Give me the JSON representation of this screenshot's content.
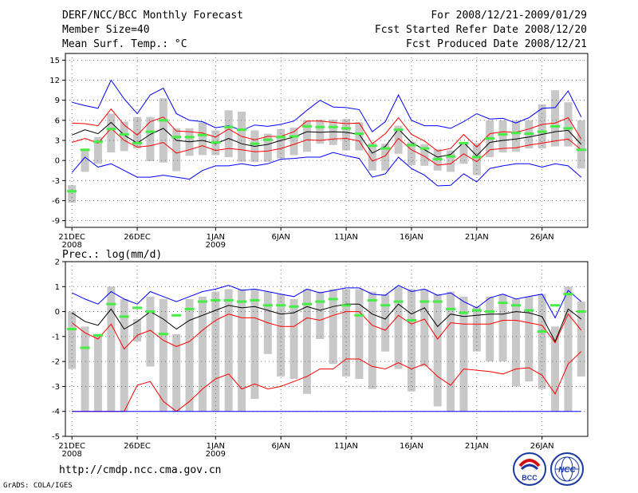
{
  "header": {
    "title": "DERF/NCC/BCC Monthly Forecast",
    "member_size": "Member Size=40",
    "variable1": "Mean Surf. Temp.: °C",
    "period": "For 2008/12/21-2009/01/29",
    "fcst_started": "Fcst Started Refer Date 2008/12/20",
    "fcst_produced": "Fcst Produced Date 2008/12/21"
  },
  "footer": {
    "url": "http://cmdp.ncc.cma.gov.cn",
    "grads": "GrADS: COLA/IGES",
    "logo1_text": "BCC",
    "logo2_text": "NCC"
  },
  "colors": {
    "envelope": "#0000ff",
    "percentile": "#ff0000",
    "median": "#000000",
    "observed": "#44ee44",
    "box": "#c8c8c8",
    "grid": "#555555"
  },
  "chart_data": [
    {
      "type": "line",
      "title": "Mean Surf. Temp.: °C",
      "ylabel": "°C",
      "ylim": [
        -10,
        16
      ],
      "yticks": [
        15,
        12,
        9,
        6,
        3,
        0,
        -3,
        -6,
        -9
      ],
      "xticks": [
        {
          "day": 1,
          "label": "21DEC",
          "sub": "2008"
        },
        {
          "day": 6,
          "label": "26DEC",
          "sub": ""
        },
        {
          "day": 12,
          "label": "1JAN",
          "sub": "2009"
        },
        {
          "day": 17,
          "label": "6JAN",
          "sub": ""
        },
        {
          "day": 22,
          "label": "11JAN",
          "sub": ""
        },
        {
          "day": 27,
          "label": "16JAN",
          "sub": ""
        },
        {
          "day": 32,
          "label": "21JAN",
          "sub": ""
        },
        {
          "day": 37,
          "label": "26JAN",
          "sub": ""
        }
      ],
      "days": 40,
      "series": [
        {
          "name": "max",
          "values": [
            8.7,
            8.2,
            7.8,
            12,
            9.2,
            7,
            9.8,
            10.8,
            7,
            6,
            5.8,
            4.9,
            5.2,
            4.5,
            5.3,
            5.1,
            5.4,
            5.9,
            7.5,
            9,
            8,
            7.9,
            7.6,
            4.3,
            5.8,
            9.8,
            6,
            5.2,
            5.2,
            4.8,
            5.8,
            7,
            6.2,
            6.3,
            5.6,
            6.4,
            7.8,
            7.9,
            10.4,
            6.5
          ]
        },
        {
          "name": "p75",
          "values": [
            5.6,
            5.5,
            5.2,
            7.7,
            5.3,
            3.8,
            5.8,
            6.5,
            4.4,
            4.3,
            4.1,
            3.5,
            4.7,
            3.6,
            3.1,
            3.6,
            3.6,
            4.3,
            5.9,
            5.9,
            5.7,
            5.5,
            5.6,
            2.5,
            4,
            6.4,
            3.9,
            2.9,
            1.4,
            1.8,
            3.9,
            2,
            4,
            4.3,
            4.2,
            4.7,
            5.4,
            5.6,
            6.4,
            3.2
          ]
        },
        {
          "name": "median",
          "values": [
            3.8,
            4.6,
            4,
            5.7,
            3.8,
            2.6,
            3.9,
            4.8,
            3,
            2.8,
            3,
            2.5,
            3.3,
            2.5,
            2.1,
            2.4,
            3,
            3.5,
            4.3,
            4.2,
            4.3,
            4.2,
            3.9,
            1.1,
            2.1,
            4.7,
            2.7,
            1.6,
            0.5,
            0.9,
            2.7,
            0.7,
            2.7,
            3,
            3.2,
            3.5,
            3.9,
            4.3,
            4.5,
            2.4
          ]
        },
        {
          "name": "p25",
          "values": [
            2.7,
            3.3,
            2.6,
            4.8,
            3,
            2,
            2.2,
            2.7,
            1.1,
            1.6,
            2.2,
            1.5,
            1.8,
            1.6,
            1.3,
            1.4,
            1.8,
            2.4,
            3.1,
            3,
            3.2,
            3.3,
            2.9,
            -0.1,
            0.7,
            3.3,
            1.6,
            0.6,
            -0.7,
            -0.5,
            1,
            -0.2,
            1.6,
            1.8,
            1.9,
            2.3,
            2.6,
            2.9,
            3.2,
            1.6
          ]
        },
        {
          "name": "min",
          "values": [
            -1.8,
            0.5,
            -1,
            -0.5,
            -1.5,
            -2.5,
            -2.5,
            -2.2,
            -2.5,
            -2.8,
            -1.5,
            -0.8,
            -0.8,
            -0.5,
            -0.8,
            -0.5,
            0.2,
            0.3,
            0.5,
            0.5,
            1.2,
            0.7,
            0.3,
            -2.5,
            -2,
            0.5,
            -1.2,
            -2.2,
            -3.8,
            -3.7,
            -2,
            -3.2,
            -1.2,
            -0.8,
            -0.5,
            -0.5,
            -1,
            -0.5,
            -0.8,
            -2.5
          ]
        },
        {
          "name": "box_high",
          "values": [
            -3.7,
            1.6,
            3.5,
            7,
            5.8,
            6.5,
            6.5,
            9.3,
            4.8,
            4.8,
            5.7,
            4.5,
            7.5,
            7.3,
            4.5,
            4,
            4.7,
            4.9,
            6,
            6.1,
            6.1,
            6.2,
            5.7,
            2.6,
            2.5,
            5.2,
            2.8,
            2.4,
            1.7,
            1.5,
            2.6,
            2.6,
            6,
            6,
            6,
            6,
            8.4,
            10.5,
            8.7,
            6
          ]
        },
        {
          "name": "box_low",
          "values": [
            -6.3,
            -1.7,
            -0.5,
            1.2,
            1.4,
            1.8,
            -0.1,
            -0.3,
            -1.6,
            0.7,
            0.8,
            0.8,
            0.5,
            -0.2,
            -0.2,
            -0.2,
            0.3,
            0.8,
            1.3,
            2.5,
            2.3,
            1.5,
            1.5,
            -1.5,
            -1.5,
            1,
            -0.7,
            -0.8,
            -1.5,
            -1.7,
            -0.5,
            -2.2,
            0.5,
            1.2,
            1.3,
            1.8,
            1.8,
            2.1,
            2.1,
            -1.2
          ]
        },
        {
          "name": "observed",
          "values": [
            -4.6,
            1.6,
            2.8,
            4.7,
            3.9,
            2.6,
            4.3,
            6,
            3.5,
            3.5,
            3.8,
            2.7,
            5,
            4.6,
            2.5,
            3.1,
            3.5,
            3.6,
            5.1,
            5,
            5,
            4.8,
            4,
            2.2,
            1.8,
            4.6,
            2.3,
            1.8,
            0.2,
            0.6,
            2.6,
            0.5,
            3.3,
            3.9,
            4.1,
            4,
            4.3,
            5.1,
            4.8,
            1.6
          ]
        }
      ]
    },
    {
      "type": "line",
      "title": "Prec.: log(mm/d)",
      "ylabel": "log(mm/d)",
      "ylim": [
        -5,
        2
      ],
      "yticks": [
        2,
        1,
        0,
        -1,
        -2,
        -3,
        -4,
        -5
      ],
      "xticks": [
        {
          "day": 1,
          "label": "21DEC",
          "sub": "2008"
        },
        {
          "day": 6,
          "label": "26DEC",
          "sub": ""
        },
        {
          "day": 12,
          "label": "1JAN",
          "sub": "2009"
        },
        {
          "day": 17,
          "label": "6JAN",
          "sub": ""
        },
        {
          "day": 22,
          "label": "11JAN",
          "sub": ""
        },
        {
          "day": 27,
          "label": "16JAN",
          "sub": ""
        },
        {
          "day": 32,
          "label": "21JAN",
          "sub": ""
        },
        {
          "day": 37,
          "label": "26JAN",
          "sub": ""
        }
      ],
      "days": 40,
      "series": [
        {
          "name": "max",
          "values": [
            0.75,
            0.5,
            0.3,
            0.8,
            0.5,
            0.3,
            0.8,
            0.6,
            0.4,
            0.6,
            0.8,
            0.9,
            1.05,
            0.85,
            0.9,
            0.8,
            0.7,
            0.6,
            0.9,
            0.75,
            0.85,
            0.95,
            0.95,
            0.7,
            0.65,
            1.05,
            0.8,
            0.9,
            0.65,
            0.75,
            0.4,
            0.15,
            0.55,
            0.7,
            0.5,
            0.6,
            0.7,
            -0.25,
            0.85,
            0.4
          ]
        },
        {
          "name": "median",
          "values": [
            -0.05,
            -0.4,
            -0.55,
            0.1,
            -0.7,
            -0.4,
            0,
            -0.3,
            -0.7,
            -0.35,
            -0.15,
            0.05,
            0.25,
            0.15,
            0.2,
            0.05,
            -0.1,
            -0.05,
            0.2,
            0.05,
            0.2,
            0.3,
            0.3,
            -0.1,
            -0.3,
            0.3,
            -0.1,
            0.15,
            -0.6,
            -0.1,
            -0.2,
            -0.15,
            -0.1,
            -0.1,
            0,
            -0.05,
            -0.2,
            -1.2,
            0.1,
            -0.3
          ]
        },
        {
          "name": "p25",
          "values": [
            -0.45,
            -0.85,
            -1.1,
            -0.5,
            -1.5,
            -0.95,
            -0.75,
            -1.15,
            -1.4,
            -1.2,
            -0.75,
            -0.35,
            -0.1,
            -0.25,
            -0.25,
            -0.45,
            -0.6,
            -0.6,
            -0.25,
            -0.35,
            -0.15,
            0,
            0,
            -0.55,
            -0.75,
            -0.15,
            -0.5,
            -0.3,
            -1.1,
            -0.45,
            -0.5,
            -0.5,
            -0.5,
            -0.35,
            -0.35,
            -0.45,
            -0.55,
            -1.25,
            -0.1,
            -0.75
          ]
        },
        {
          "name": "p5",
          "values": [
            -4,
            -4,
            -4,
            -4,
            -4,
            -2.95,
            -2.8,
            -3.6,
            -4,
            -3.6,
            -3.1,
            -2.7,
            -2.5,
            -3.1,
            -2.9,
            -3.1,
            -3.0,
            -2.8,
            -2.6,
            -2.3,
            -2.3,
            -1.9,
            -1.9,
            -2.2,
            -2.3,
            -2.05,
            -2.3,
            -2.1,
            -2.6,
            -2.95,
            -2.3,
            -2.35,
            -2.4,
            -2.5,
            -2.3,
            -2.25,
            -2.55,
            -3.3,
            -2.1,
            -1.6
          ]
        },
        {
          "name": "min",
          "values": [
            -4,
            -4,
            -4,
            -4,
            -4,
            -4,
            -4,
            -4,
            -4,
            -4,
            -4,
            -4,
            -4,
            -4,
            -4,
            -4,
            -4,
            -4,
            -4,
            -4,
            -4,
            -4,
            -4,
            -4,
            -4,
            -4,
            -4,
            -4,
            -4,
            -4,
            -4,
            -4,
            -4,
            -4,
            -4,
            -4,
            -4,
            -4,
            -4,
            -4
          ]
        },
        {
          "name": "box_high",
          "values": [
            0,
            -0.6,
            -0.9,
            1,
            0.5,
            -0.3,
            0.6,
            0.5,
            -0.9,
            0.5,
            0.6,
            0.8,
            0.9,
            0.9,
            0.9,
            0.8,
            0.7,
            0.5,
            0.9,
            0.8,
            0.9,
            0.9,
            0.9,
            0.8,
            0.7,
            1,
            0.9,
            0.9,
            0.7,
            0.8,
            0.6,
            0.2,
            0.6,
            0.7,
            0.5,
            0.6,
            0.7,
            -0.6,
            1,
            0.4
          ]
        },
        {
          "name": "box_low",
          "values": [
            -2.3,
            -4,
            -4,
            -4,
            -4,
            -1.2,
            -2.2,
            -4,
            -4,
            -4,
            -4,
            -4,
            -4,
            -4,
            -3.5,
            -1.7,
            -2.6,
            -2.7,
            -3.3,
            -1.1,
            -2.1,
            -2.6,
            -2.7,
            -3.1,
            -1.6,
            -2.3,
            -3.2,
            -2.2,
            -3.8,
            -4,
            -4,
            -1.6,
            -2,
            -2,
            -3,
            -2.8,
            -3.1,
            -4,
            -4,
            -2.6
          ]
        },
        {
          "name": "observed",
          "values": [
            -0.7,
            -1.45,
            -0.95,
            0.3,
            -0.2,
            0.15,
            0,
            -0.9,
            -0.15,
            0.1,
            0.4,
            0.45,
            0.45,
            0.4,
            0.45,
            0.25,
            0.25,
            0.2,
            0.3,
            0.4,
            0.5,
            0.25,
            -0.15,
            0.45,
            0.25,
            0.4,
            -0.35,
            0.4,
            0.4,
            0.1,
            -0.05,
            0.05,
            0,
            0.35,
            0.25,
            0.05,
            -0.8,
            0.25,
            0.7,
            0
          ]
        }
      ]
    }
  ]
}
